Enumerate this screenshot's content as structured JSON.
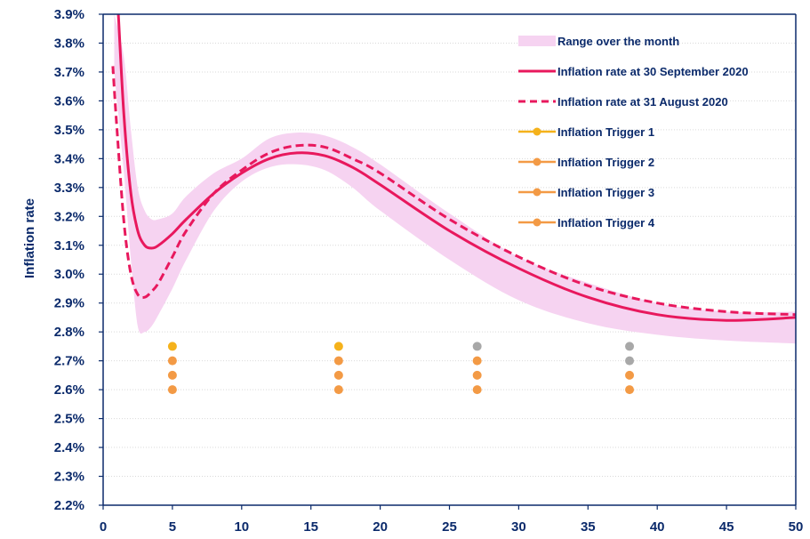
{
  "chart_data": {
    "type": "line",
    "title": "",
    "xlabel": "",
    "ylabel": "Inflation rate",
    "xlim": [
      0,
      50
    ],
    "ylim": [
      2.2,
      3.9
    ],
    "x_ticks": [
      "0",
      "5",
      "10",
      "15",
      "20",
      "25",
      "30",
      "35",
      "40",
      "45",
      "50"
    ],
    "y_ticks": [
      "2.2%",
      "2.3%",
      "2.4%",
      "2.5%",
      "2.6%",
      "2.7%",
      "2.8%",
      "2.9%",
      "3.0%",
      "3.1%",
      "3.2%",
      "3.3%",
      "3.4%",
      "3.5%",
      "3.6%",
      "3.7%",
      "3.8%",
      "3.9%"
    ],
    "grid": "horizontal",
    "legend_position": "top-right",
    "colors": {
      "axis": "#0b2a6b",
      "range_band": "#f6d3f1",
      "sep_line": "#e8185d",
      "aug_line": "#e8185d",
      "trigger_yellow": "#f5b21b",
      "trigger_orange": "#f39a45",
      "trigger_grey": "#a8a8a8"
    },
    "band": {
      "name": "Range over the month",
      "x": [
        0.8,
        1.5,
        2,
        2.5,
        3,
        3.5,
        4,
        5,
        6,
        8,
        10,
        12,
        14,
        16,
        18,
        20,
        25,
        30,
        35,
        40,
        45,
        50
      ],
      "lower": [
        3.7,
        3.35,
        3.05,
        2.82,
        2.8,
        2.82,
        2.86,
        2.95,
        3.05,
        3.22,
        3.32,
        3.37,
        3.38,
        3.36,
        3.3,
        3.22,
        3.05,
        2.91,
        2.83,
        2.79,
        2.77,
        2.76
      ],
      "upper": [
        3.9,
        3.75,
        3.5,
        3.3,
        3.22,
        3.19,
        3.19,
        3.21,
        3.27,
        3.35,
        3.4,
        3.47,
        3.49,
        3.48,
        3.44,
        3.38,
        3.21,
        3.06,
        2.97,
        2.9,
        2.87,
        2.87
      ]
    },
    "series": [
      {
        "name": "Inflation rate at 30 September 2020",
        "style": "solid",
        "x": [
          1.1,
          1.5,
          2,
          2.5,
          3,
          3.5,
          4,
          5,
          6,
          8,
          10,
          12,
          14,
          16,
          18,
          20,
          25,
          30,
          35,
          40,
          45,
          50
        ],
        "y": [
          3.9,
          3.55,
          3.28,
          3.15,
          3.1,
          3.09,
          3.1,
          3.14,
          3.19,
          3.28,
          3.35,
          3.4,
          3.42,
          3.41,
          3.37,
          3.31,
          3.15,
          3.02,
          2.92,
          2.86,
          2.84,
          2.85
        ]
      },
      {
        "name": "Inflation rate at 31 August 2020",
        "style": "dashed",
        "x": [
          0.7,
          1,
          1.5,
          2,
          2.5,
          3,
          3.5,
          4,
          5,
          6,
          8,
          10,
          12,
          14,
          16,
          18,
          20,
          25,
          30,
          35,
          40,
          45,
          50
        ],
        "y": [
          3.72,
          3.5,
          3.18,
          3.0,
          2.93,
          2.92,
          2.94,
          2.97,
          3.06,
          3.15,
          3.28,
          3.36,
          3.42,
          3.445,
          3.44,
          3.4,
          3.35,
          3.19,
          3.06,
          2.96,
          2.9,
          2.87,
          2.86
        ]
      }
    ],
    "triggers": [
      {
        "name": "Inflation Trigger 1",
        "color": "#f5b21b",
        "points": [
          {
            "x": 5,
            "y": 2.75
          },
          {
            "x": 17,
            "y": 2.75
          },
          {
            "x": 27,
            "y": 2.75,
            "color": "#a8a8a8"
          },
          {
            "x": 38,
            "y": 2.75,
            "color": "#a8a8a8"
          }
        ]
      },
      {
        "name": "Inflation Trigger 2",
        "color": "#f39a45",
        "points": [
          {
            "x": 5,
            "y": 2.7
          },
          {
            "x": 17,
            "y": 2.7
          },
          {
            "x": 27,
            "y": 2.7
          },
          {
            "x": 38,
            "y": 2.7,
            "color": "#a8a8a8"
          }
        ]
      },
      {
        "name": "Inflation Trigger 3",
        "color": "#f39a45",
        "points": [
          {
            "x": 5,
            "y": 2.65
          },
          {
            "x": 17,
            "y": 2.65
          },
          {
            "x": 27,
            "y": 2.65
          },
          {
            "x": 38,
            "y": 2.65
          }
        ]
      },
      {
        "name": "Inflation Trigger 4",
        "color": "#f39a45",
        "points": [
          {
            "x": 5,
            "y": 2.6
          },
          {
            "x": 17,
            "y": 2.6
          },
          {
            "x": 27,
            "y": 2.6
          },
          {
            "x": 38,
            "y": 2.6
          }
        ]
      }
    ],
    "legend": [
      {
        "label": "Range over the month",
        "kind": "band"
      },
      {
        "label": "Inflation rate at 30 September 2020",
        "kind": "solid"
      },
      {
        "label": "Inflation rate at 31 August 2020",
        "kind": "dashed"
      },
      {
        "label": "Inflation Trigger 1",
        "kind": "trigger",
        "color": "#f5b21b"
      },
      {
        "label": "Inflation Trigger 2",
        "kind": "trigger",
        "color": "#f39a45"
      },
      {
        "label": "Inflation Trigger 3",
        "kind": "trigger",
        "color": "#f39a45"
      },
      {
        "label": "Inflation Trigger 4",
        "kind": "trigger",
        "color": "#f39a45"
      }
    ]
  }
}
